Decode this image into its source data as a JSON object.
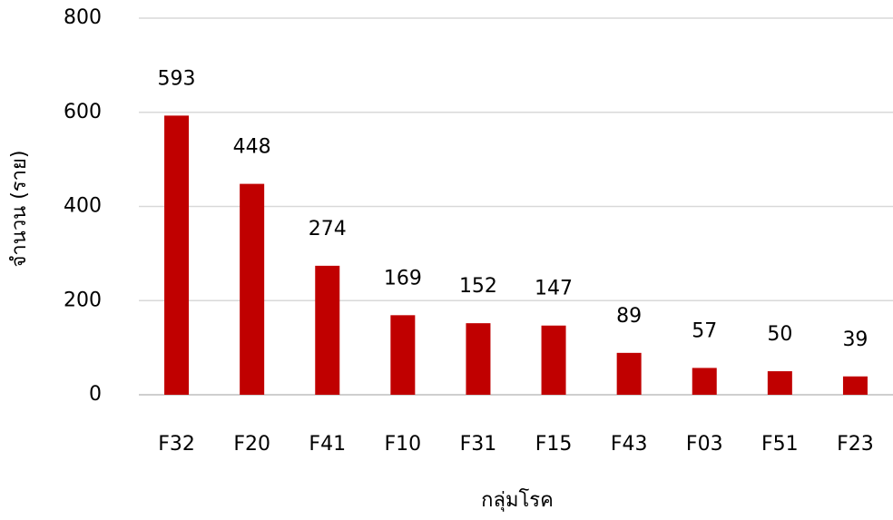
{
  "chart_data": {
    "type": "bar",
    "x_label": "กลุ่มโรค",
    "y_label": "จำนวน (ราย)",
    "categories": [
      "F32",
      "F20",
      "F41",
      "F10",
      "F31",
      "F15",
      "F43",
      "F03",
      "F51",
      "F23"
    ],
    "values": [
      593,
      448,
      274,
      169,
      152,
      147,
      89,
      57,
      50,
      39
    ],
    "color": "#c00000",
    "ylim": [
      0,
      800
    ],
    "yticks": [
      0,
      200,
      400,
      600,
      800
    ],
    "grid": true
  }
}
